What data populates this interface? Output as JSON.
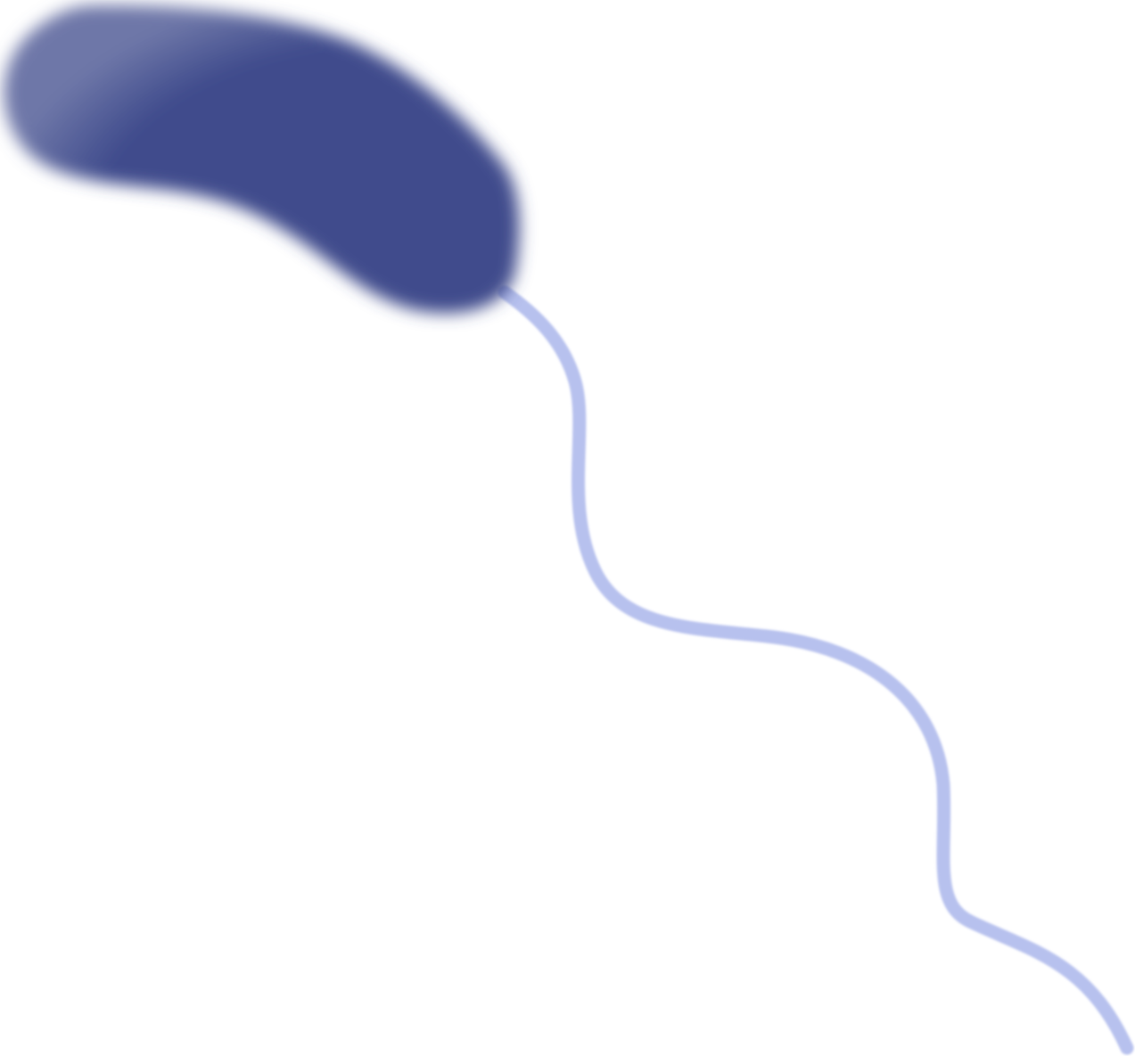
{
  "illustration": {
    "subject": "bacterium-with-single-flagellum",
    "colors": {
      "background": "#ffffff",
      "cell_body_core": "#3f4b8c",
      "cell_body_edge": "#6e77a8",
      "flagellum": "#b7c1ee"
    }
  }
}
